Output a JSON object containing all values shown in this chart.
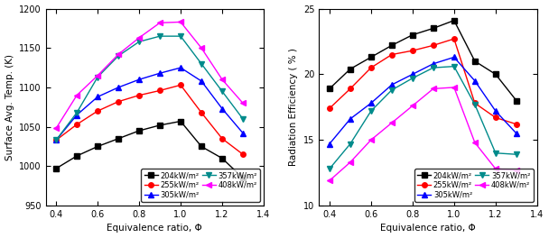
{
  "x": [
    0.4,
    0.5,
    0.6,
    0.7,
    0.8,
    0.9,
    1.0,
    1.1,
    1.2,
    1.3
  ],
  "temp": {
    "204": [
      997,
      1013,
      1025,
      1035,
      1045,
      1052,
      1057,
      1025,
      1010,
      985
    ],
    "255": [
      1033,
      1053,
      1070,
      1082,
      1090,
      1096,
      1103,
      1068,
      1035,
      1015
    ],
    "305": [
      1033,
      1065,
      1088,
      1100,
      1110,
      1118,
      1125,
      1108,
      1073,
      1042
    ],
    "357": [
      1033,
      1068,
      1113,
      1140,
      1158,
      1165,
      1165,
      1130,
      1095,
      1060
    ],
    "408": [
      1048,
      1090,
      1115,
      1142,
      1163,
      1182,
      1183,
      1150,
      1110,
      1080
    ]
  },
  "rad": {
    "204": [
      18.9,
      20.4,
      21.3,
      22.2,
      23.0,
      23.5,
      24.1,
      21.0,
      20.0,
      18.0
    ],
    "255": [
      17.4,
      18.9,
      20.5,
      21.5,
      21.8,
      22.2,
      22.7,
      17.8,
      16.7,
      16.2
    ],
    "305": [
      14.7,
      16.6,
      17.8,
      19.2,
      20.0,
      20.8,
      21.3,
      19.5,
      17.2,
      15.5
    ],
    "357": [
      12.8,
      14.7,
      17.2,
      18.8,
      19.7,
      20.5,
      20.6,
      17.7,
      14.0,
      13.9
    ],
    "408": [
      11.9,
      13.3,
      15.0,
      16.3,
      17.6,
      18.9,
      19.0,
      14.8,
      12.8,
      12.7
    ]
  },
  "colors": {
    "204": "#000000",
    "255": "#ff0000",
    "305": "#0000ff",
    "357": "#008B8B",
    "408": "#ff00ff"
  },
  "markers": {
    "204": "s",
    "255": "o",
    "305": "^",
    "357": "v",
    "408": "<"
  },
  "labels": {
    "204": "204kW/m²",
    "255": "255kW/m²",
    "305": "305kW/m²",
    "357": "357kW/m²",
    "408": "408kW/m²"
  },
  "temp_ylim": [
    950,
    1200
  ],
  "temp_yticks": [
    950,
    1000,
    1050,
    1100,
    1150,
    1200
  ],
  "rad_ylim": [
    10,
    25
  ],
  "rad_yticks": [
    10,
    15,
    20,
    25
  ],
  "xlim": [
    0.35,
    1.4
  ],
  "xticks": [
    0.4,
    0.6,
    0.8,
    1.0,
    1.2,
    1.4
  ],
  "xlabel": "Equivalence ratio, Φ",
  "temp_ylabel": "Surface Avg. Temp. (K)",
  "rad_ylabel": "Radiation Efficiency ( % )"
}
